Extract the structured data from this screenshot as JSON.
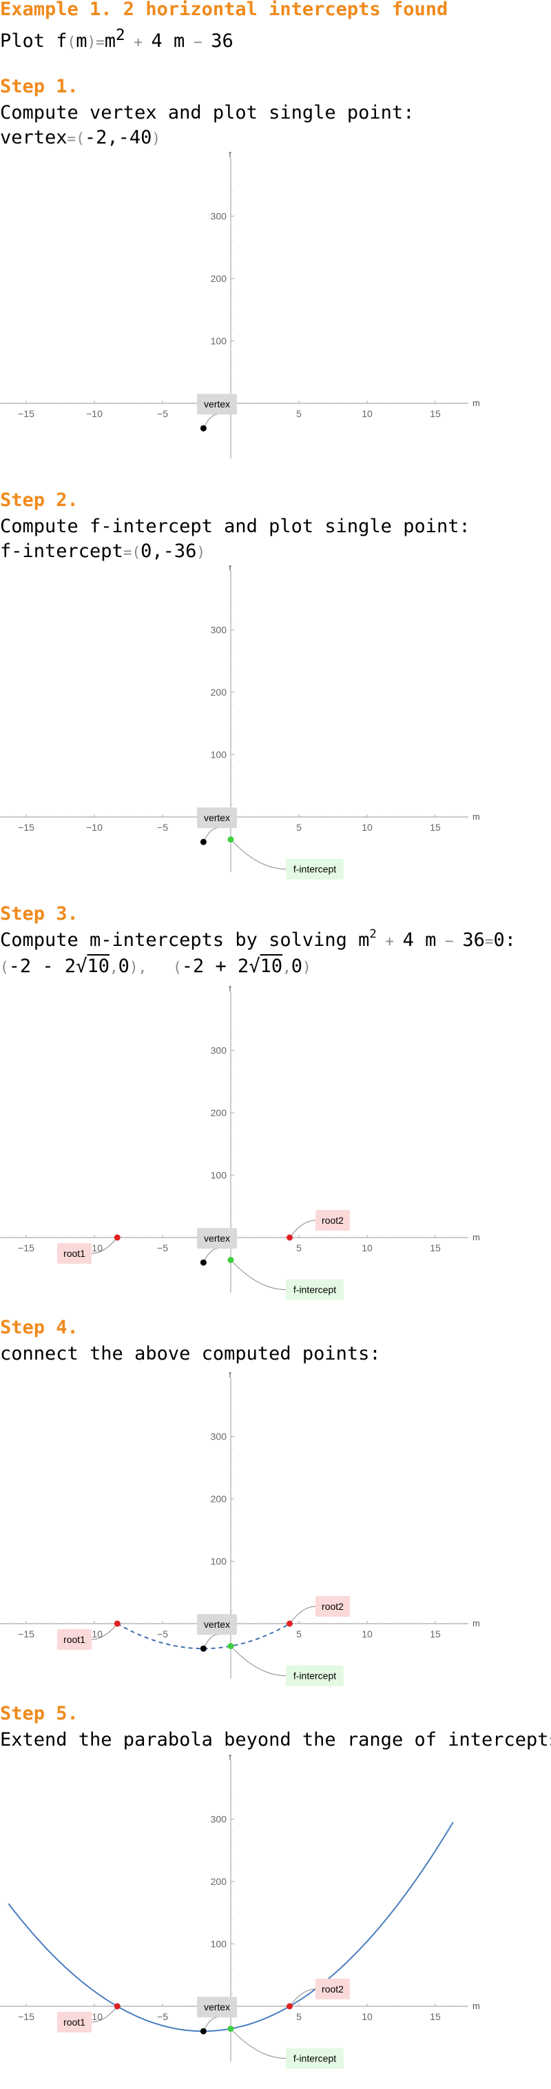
{
  "example": {
    "title": "Example 1. 2 horizontal intercepts found",
    "plot_prefix": "Plot f",
    "plot_var": "m",
    "plot_rhs_a": "m",
    "plot_exp": "2",
    "plot_rhs_b": "4 m",
    "plot_rhs_c": "36"
  },
  "steps": [
    {
      "title": "Step 1.",
      "line1": "Compute vertex and plot single point:",
      "line2_label": "vertex",
      "line2_value": "-2,-40"
    },
    {
      "title": "Step 2.",
      "line1": "Compute f-intercept and plot single point:",
      "line2_label": "f-intercept",
      "line2_value": "0,-36"
    },
    {
      "title": "Step 3.",
      "line1_prefix": "Compute m-intercepts by solving m",
      "line1_exp": "2",
      "line1_b": "4 m",
      "line1_c": "36",
      "line1_d": "0:",
      "root1_text": "-2 - 2",
      "root2_text": "-2 + 2",
      "sqrt_arg": "10",
      "zero": "0"
    },
    {
      "title": "Step 4.",
      "line1": "connect the above computed points:"
    },
    {
      "title": "Step 5.",
      "line1": "Extend the parabola beyond the range of intercepts"
    }
  ],
  "chart_data": [
    {
      "type": "scatter",
      "xlabel": "m",
      "ylabel": "f",
      "xlim": [
        -17,
        17.5
      ],
      "ylim": [
        -40,
        350
      ],
      "xticks": [
        -15,
        -10,
        -5,
        5,
        10,
        15
      ],
      "yticks": [
        100,
        200,
        300
      ],
      "points": [
        {
          "name": "vertex",
          "x": -2,
          "y": -40,
          "color": "#000000"
        }
      ],
      "annotations": [
        {
          "text": "vertex",
          "color": "#d9d9d9"
        }
      ]
    },
    {
      "type": "scatter",
      "xlabel": "m",
      "ylabel": "f",
      "xlim": [
        -17,
        17.5
      ],
      "ylim": [
        -40,
        350
      ],
      "xticks": [
        -15,
        -10,
        -5,
        5,
        10,
        15
      ],
      "yticks": [
        100,
        200,
        300
      ],
      "points": [
        {
          "name": "vertex",
          "x": -2,
          "y": -40,
          "color": "#000000"
        },
        {
          "name": "f-intercept",
          "x": 0,
          "y": -36,
          "color": "#3ecf3e"
        }
      ],
      "annotations": [
        {
          "text": "vertex",
          "color": "#d9d9d9"
        },
        {
          "text": "f-intercept",
          "color": "#e3f9e3"
        }
      ]
    },
    {
      "type": "scatter",
      "xlabel": "m",
      "ylabel": "f",
      "xlim": [
        -17,
        17.5
      ],
      "ylim": [
        -40,
        350
      ],
      "xticks": [
        -15,
        -10,
        -5,
        5,
        10,
        15
      ],
      "yticks": [
        100,
        200,
        300
      ],
      "points": [
        {
          "name": "root1",
          "x": -8.32,
          "y": 0,
          "color": "#e02020"
        },
        {
          "name": "root2",
          "x": 4.32,
          "y": 0,
          "color": "#e02020"
        },
        {
          "name": "vertex",
          "x": -2,
          "y": -40,
          "color": "#000000"
        },
        {
          "name": "f-intercept",
          "x": 0,
          "y": -36,
          "color": "#3ecf3e"
        }
      ],
      "annotations": [
        {
          "text": "root1",
          "color": "#fbd9d9"
        },
        {
          "text": "root2",
          "color": "#fbd9d9"
        },
        {
          "text": "vertex",
          "color": "#d9d9d9"
        },
        {
          "text": "f-intercept",
          "color": "#e3f9e3"
        }
      ]
    },
    {
      "type": "line",
      "xlabel": "m",
      "ylabel": "f",
      "xlim": [
        -17,
        17.5
      ],
      "ylim": [
        -40,
        350
      ],
      "xticks": [
        -15,
        -10,
        -5,
        5,
        10,
        15
      ],
      "yticks": [
        100,
        200,
        300
      ],
      "curve": {
        "x_range": [
          -8.32,
          4.32
        ],
        "style": "dashed",
        "color": "#3f6fb0"
      },
      "points": [
        {
          "name": "root1",
          "x": -8.32,
          "y": 0,
          "color": "#e02020"
        },
        {
          "name": "root2",
          "x": 4.32,
          "y": 0,
          "color": "#e02020"
        },
        {
          "name": "vertex",
          "x": -2,
          "y": -40,
          "color": "#000000"
        },
        {
          "name": "f-intercept",
          "x": 0,
          "y": -36,
          "color": "#3ecf3e"
        }
      ],
      "annotations": [
        {
          "text": "root1",
          "color": "#fbd9d9"
        },
        {
          "text": "root2",
          "color": "#fbd9d9"
        },
        {
          "text": "vertex",
          "color": "#d9d9d9"
        },
        {
          "text": "f-intercept",
          "color": "#e3f9e3"
        }
      ]
    },
    {
      "type": "line",
      "xlabel": "m",
      "ylabel": "f",
      "xlim": [
        -17,
        17.5
      ],
      "ylim": [
        -40,
        350
      ],
      "xticks": [
        -15,
        -10,
        -5,
        5,
        10,
        15
      ],
      "yticks": [
        100,
        200,
        300
      ],
      "curve": {
        "x_range": [
          -16.3,
          16.3
        ],
        "style": "solid",
        "color": "#4a7ec0"
      },
      "points": [
        {
          "name": "root1",
          "x": -8.32,
          "y": 0,
          "color": "#e02020"
        },
        {
          "name": "root2",
          "x": 4.32,
          "y": 0,
          "color": "#e02020"
        },
        {
          "name": "vertex",
          "x": -2,
          "y": -40,
          "color": "#000000"
        },
        {
          "name": "f-intercept",
          "x": 0,
          "y": -36,
          "color": "#3ecf3e"
        }
      ],
      "annotations": [
        {
          "text": "root1",
          "color": "#fbd9d9"
        },
        {
          "text": "root2",
          "color": "#fbd9d9"
        },
        {
          "text": "vertex",
          "color": "#d9d9d9"
        },
        {
          "text": "f-intercept",
          "color": "#e3f9e3"
        }
      ]
    }
  ]
}
